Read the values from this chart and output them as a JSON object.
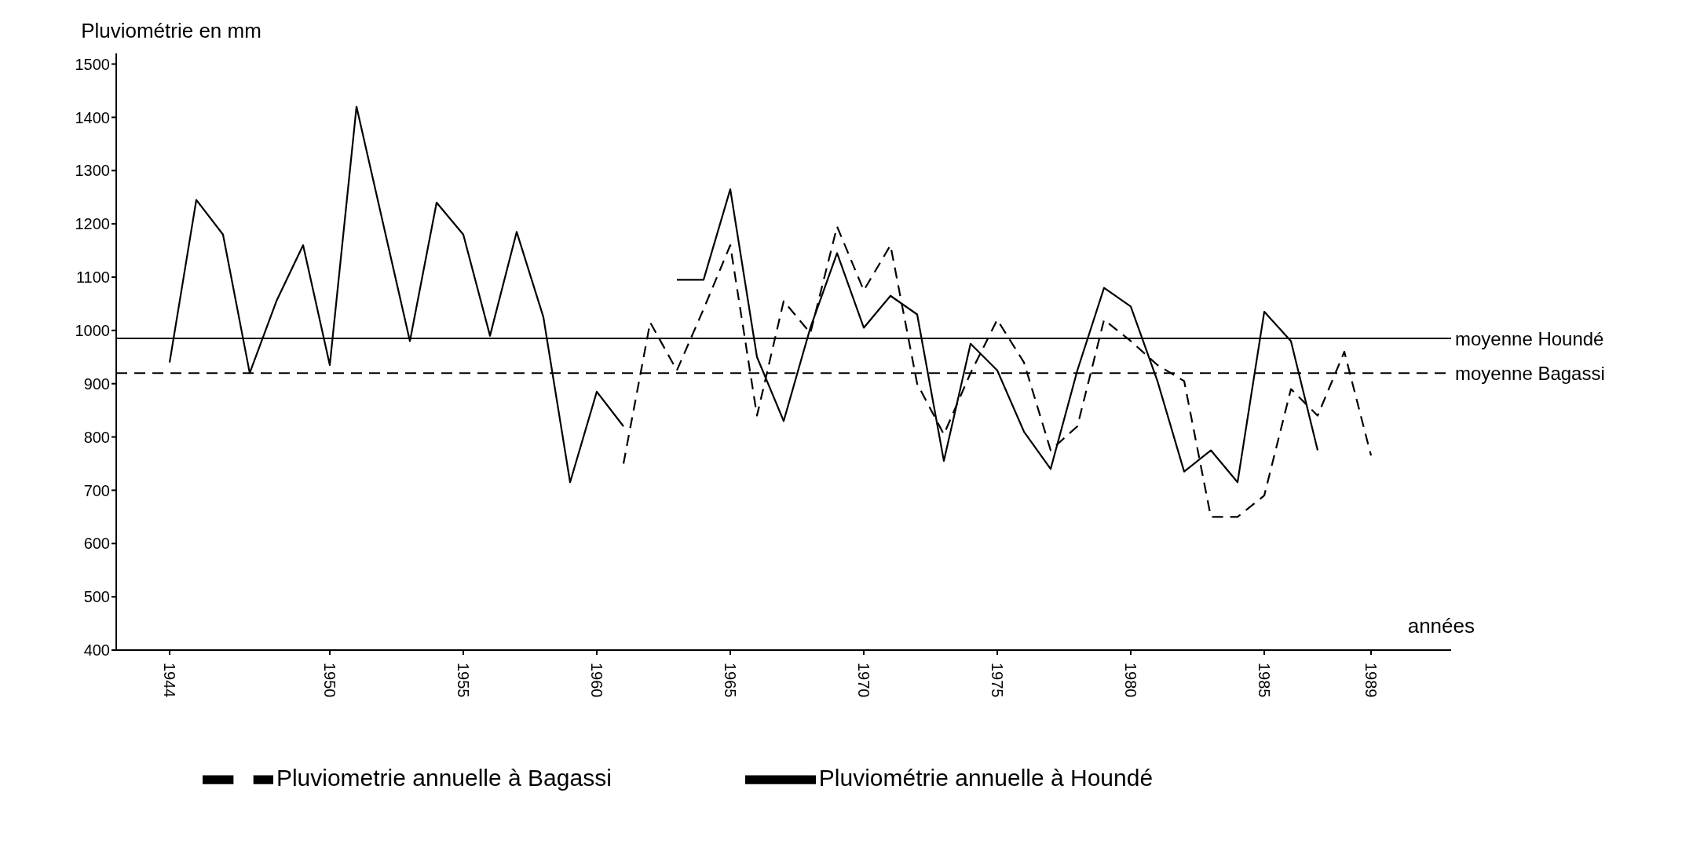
{
  "chart_data": {
    "type": "line",
    "xlabel": "années",
    "ylabel": "Pluviométrie en mm",
    "x": [
      1944,
      1945,
      1946,
      1947,
      1948,
      1949,
      1950,
      1951,
      1952,
      1953,
      1954,
      1955,
      1956,
      1957,
      1958,
      1959,
      1960,
      1961,
      1962,
      1963,
      1964,
      1965,
      1966,
      1967,
      1968,
      1969,
      1970,
      1971,
      1972,
      1973,
      1974,
      1975,
      1976,
      1977,
      1978,
      1979,
      1980,
      1981,
      1982,
      1983,
      1984,
      1985,
      1986,
      1987,
      1988,
      1989
    ],
    "series": [
      {
        "name": "Pluviométrie annuelle à Houndé",
        "color": "#000000",
        "line_style": "solid",
        "values": [
          940,
          1245,
          1180,
          920,
          1055,
          1160,
          935,
          1420,
          1200,
          980,
          1240,
          1180,
          990,
          1185,
          1025,
          715,
          885,
          820,
          null,
          1095,
          1095,
          1265,
          950,
          830,
          1005,
          1145,
          1005,
          1065,
          1030,
          755,
          975,
          925,
          810,
          740,
          925,
          1080,
          1045,
          905,
          735,
          775,
          715,
          1035,
          980,
          775,
          null,
          null
        ]
      },
      {
        "name": "Pluviometrie annuelle à Bagassi",
        "color": "#000000",
        "line_style": "dashed",
        "values": [
          null,
          null,
          null,
          null,
          null,
          null,
          null,
          null,
          null,
          null,
          null,
          null,
          null,
          null,
          null,
          null,
          null,
          750,
          1015,
          925,
          1040,
          1160,
          840,
          1055,
          995,
          1195,
          1075,
          1160,
          900,
          805,
          920,
          1020,
          940,
          775,
          820,
          1020,
          980,
          935,
          905,
          650,
          650,
          690,
          890,
          840,
          960,
          765
        ]
      }
    ],
    "xlim": [
      1942,
      1992
    ],
    "xticks": [
      1944,
      1950,
      1955,
      1960,
      1965,
      1970,
      1975,
      1980,
      1985,
      1989
    ],
    "ylim": [
      400,
      1520
    ],
    "yticks": [
      400,
      500,
      600,
      700,
      800,
      900,
      1000,
      1100,
      1200,
      1300,
      1400,
      1500
    ],
    "ref_lines": [
      {
        "axis": "y",
        "value": 985,
        "label": "moyenne Houndé",
        "color": "#000000",
        "line_style": "solid"
      },
      {
        "axis": "y",
        "value": 920,
        "label": "moyenne Bagassi",
        "color": "#000000",
        "line_style": "dashed"
      }
    ],
    "grid": false,
    "legend": "bottom",
    "marker": "none"
  }
}
